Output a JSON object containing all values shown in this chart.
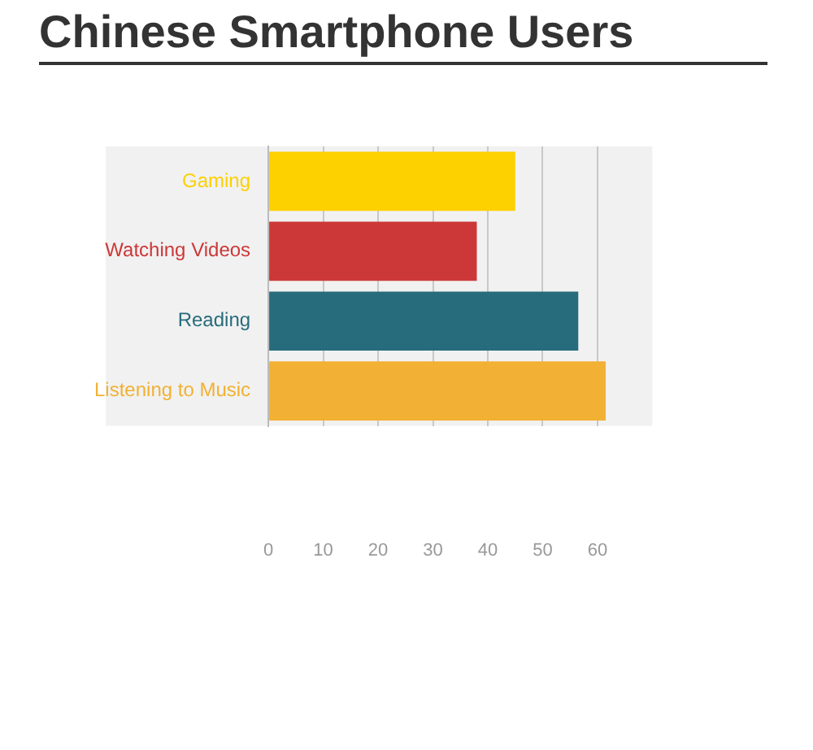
{
  "chart_data": {
    "type": "bar",
    "orientation": "horizontal",
    "title": "Chinese Smartphone Users",
    "categories": [
      "Gaming",
      "Watching Videos",
      "Reading",
      "Listening to Music"
    ],
    "values": [
      45,
      38,
      56.5,
      61.5
    ],
    "colors": [
      "#fdd000",
      "#cc3837",
      "#276c7c",
      "#f2b134"
    ],
    "xlim": [
      0,
      70
    ],
    "xticks": [
      0,
      10,
      20,
      30,
      40,
      50,
      60
    ],
    "grid": "x",
    "legend": false
  }
}
